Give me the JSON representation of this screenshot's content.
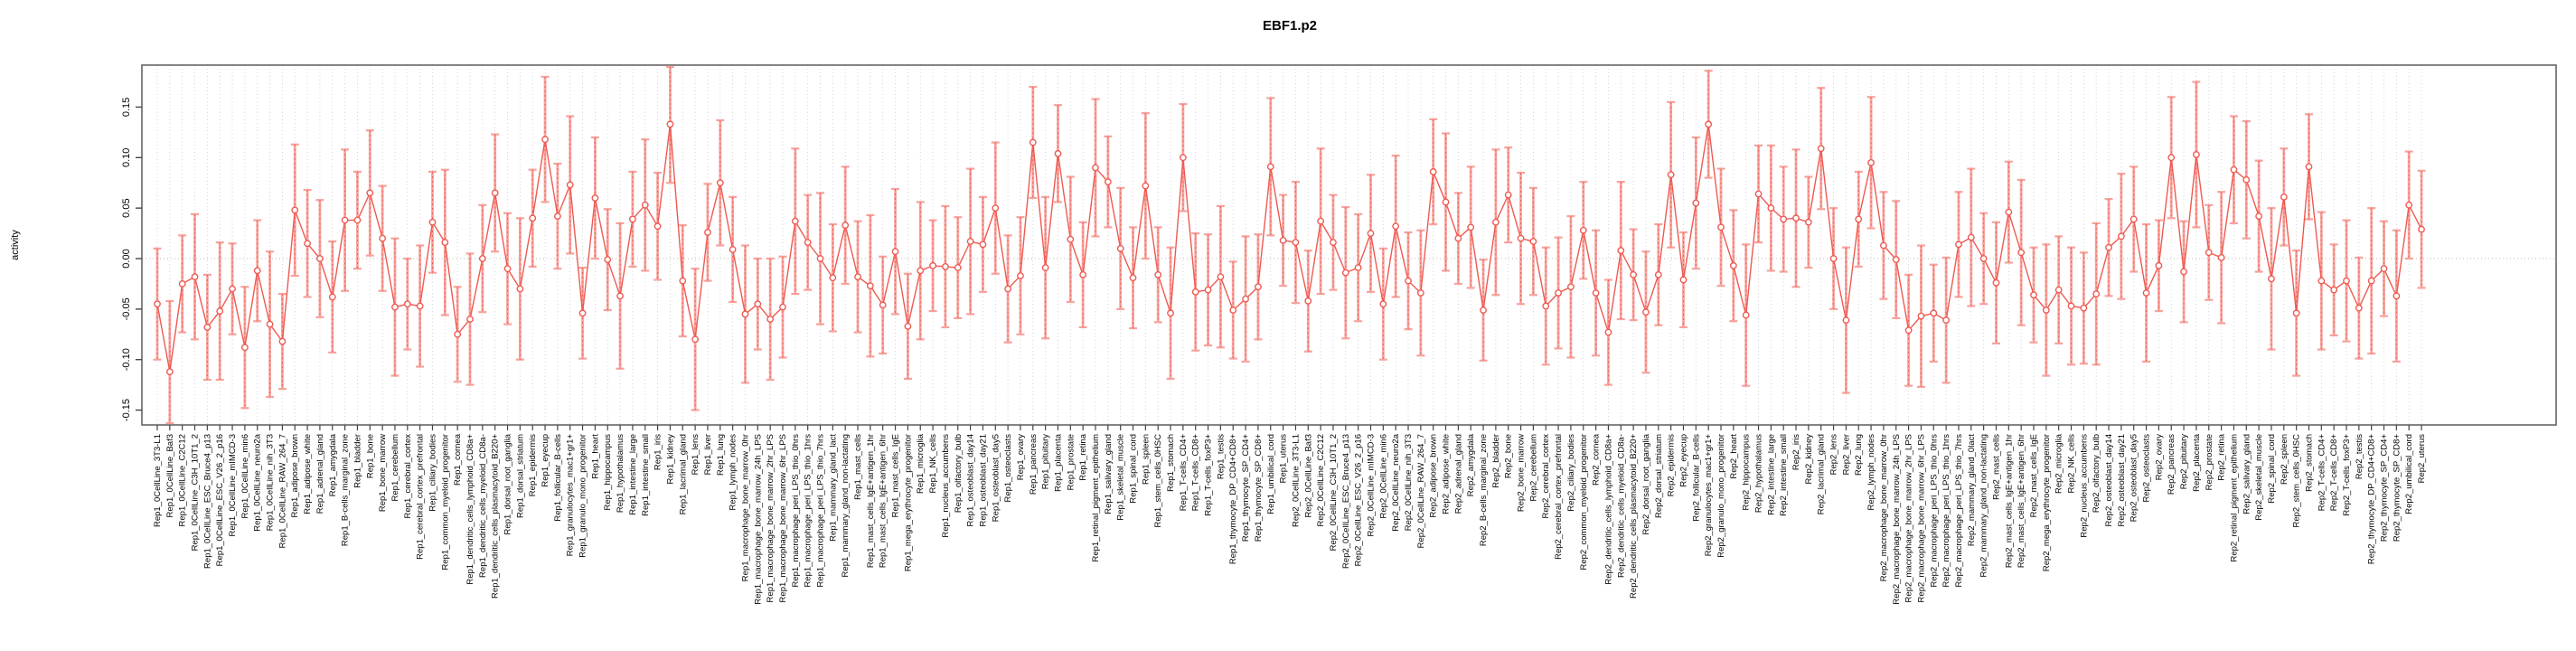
{
  "title": "EBF1.p2",
  "chart_data": {
    "type": "line",
    "subtype": "errorbar-points",
    "title": "EBF1.p2",
    "xlabel": "",
    "ylabel": "activity",
    "ylim": [
      -0.17,
      0.19
    ],
    "yticks": [
      0.15,
      0.1,
      0.05,
      0.0,
      -0.05,
      -0.1,
      -0.15
    ],
    "ytick_labels": [
      "0.15",
      "0.10",
      "0.05",
      "0.00",
      "-0.05",
      "-0.10",
      "-0.15"
    ],
    "grid": true,
    "legend_position": "none",
    "colors": {
      "series_line": "#ee5a52",
      "marker_stroke": "#ee5a52",
      "error_bar": "#f7a29c",
      "gridline": "#cccccc",
      "zero_line": "#bbbbbb",
      "box_border": "#666666",
      "tick": "#444444",
      "text": "#000000"
    },
    "categories": [
      "Rep1_0CellLine_3T3-L1",
      "Rep1_0CellLine_Baf3",
      "Rep1_0CellLine_C2C12",
      "Rep1_0CellLine_C3H_10T1_2",
      "Rep1_0CellLine_ESC_Bruce4_p13",
      "Rep1_0CellLine_ESC_V26_2_p16",
      "Rep1_0CellLine_mIMCD-3",
      "Rep1_0CellLine_min6",
      "Rep1_0CellLine_neuro2a",
      "Rep1_0CellLine_nih_3T3",
      "Rep1_0CellLine_RAW_264_7",
      "Rep1_adipose_brown",
      "Rep1_adipose_white",
      "Rep1_adrenal_gland",
      "Rep1_amygdala",
      "Rep1_B-cells_marginal_zone",
      "Rep1_bladder",
      "Rep1_bone",
      "Rep1_bone_marrow",
      "Rep1_cerebellum",
      "Rep1_cerebral_cortex",
      "Rep1_cerebral_cortex_prefrontal",
      "Rep1_ciliary_bodies",
      "Rep1_common_myeloid_progenitor",
      "Rep1_cornea",
      "Rep1_dendritic_cells_lymphoid_CD8a+",
      "Rep1_dendritic_cells_myeloid_CD8a-",
      "Rep1_dendritic_cells_plasmacytoid_B220+",
      "Rep1_dorsal_root_ganglia",
      "Rep1_dorsal_striatum",
      "Rep1_epidermis",
      "Rep1_eyecup",
      "Rep1_follicular_B-cells",
      "Rep1_granulocytes_mac1+gr1+",
      "Rep1_granulo_mono_progenitor",
      "Rep1_heart",
      "Rep1_hippocampus",
      "Rep1_hypothalamus",
      "Rep1_intestine_large",
      "Rep1_intestine_small",
      "Rep1_iris",
      "Rep1_kidney",
      "Rep1_lacrimal_gland",
      "Rep1_lens",
      "Rep1_liver",
      "Rep1_lung",
      "Rep1_lymph_nodes",
      "Rep1_macrophage_bone_marrow_0hr",
      "Rep1_macrophage_bone_marrow_24h_LPS",
      "Rep1_macrophage_bone_marrow_2hr_LPS",
      "Rep1_macrophage_bone_marrow_6hr_LPS",
      "Rep1_macrophage_peri_LPS_thio_0hrs",
      "Rep1_macrophage_peri_LPS_thio_1hrs",
      "Rep1_macrophage_peri_LPS_thio_7hrs",
      "Rep1_mammary_gland_lact",
      "Rep1_mammary_gland_non-lactating",
      "Rep1_mast_cells",
      "Rep1_mast_cells_IgE+antigen_1hr",
      "Rep1_mast_cells_IgE+antigen_6hr",
      "Rep1_mast_cells_IgE",
      "Rep1_mega_erythrocyte_progenitor",
      "Rep1_microglia",
      "Rep1_NK_cells",
      "Rep1_nucleus_accumbens",
      "Rep1_olfactory_bulb",
      "Rep1_osteoblast_day14",
      "Rep1_osteoblast_day21",
      "Rep1_osteoblast_day5",
      "Rep1_osteoclasts",
      "Rep1_ovary",
      "Rep1_pancreas",
      "Rep1_pituitary",
      "Rep1_placenta",
      "Rep1_prostate",
      "Rep1_retina",
      "Rep1_retinal_pigment_epithelium",
      "Rep1_salivary_gland",
      "Rep1_skeletal_muscle",
      "Rep1_spinal_cord",
      "Rep1_spleen",
      "Rep1_stem_cells_0HSC",
      "Rep1_stomach",
      "Rep1_T-cells_CD4+",
      "Rep1_T-cells_CD8+",
      "Rep1_T-cells_foxP3+",
      "Rep1_testis",
      "Rep1_thymocyte_DP_CD4+CD8+",
      "Rep1_thymocyte_SP_CD4+",
      "Rep1_thymocyte_SP_CD8+",
      "Rep1_umbilical_cord",
      "Rep1_uterus",
      "Rep2_0CellLine_3T3-L1",
      "Rep2_0CellLine_Baf3",
      "Rep2_0CellLine_C2C12",
      "Rep2_0CellLine_C3H_10T1_2",
      "Rep2_0CellLine_ESC_Bruce4_p13",
      "Rep2_0CellLine_ESC_V26_2_p16",
      "Rep2_0CellLine_mIMCD-3",
      "Rep2_0CellLine_min6",
      "Rep2_0CellLine_neuro2a",
      "Rep2_0CellLine_nih_3T3",
      "Rep2_0CellLine_RAW_264_7",
      "Rep2_adipose_brown",
      "Rep2_adipose_white",
      "Rep2_adrenal_gland",
      "Rep2_amygdala",
      "Rep2_B-cells_marginal_zone",
      "Rep2_bladder",
      "Rep2_bone",
      "Rep2_bone_marrow",
      "Rep2_cerebellum",
      "Rep2_cerebral_cortex",
      "Rep2_cerebral_cortex_prefrontal",
      "Rep2_ciliary_bodies",
      "Rep2_common_myeloid_progenitor",
      "Rep2_cornea",
      "Rep2_dendritic_cells_lymphoid_CD8a+",
      "Rep2_dendritic_cells_myeloid_CD8a-",
      "Rep2_dendritic_cells_plasmacytoid_B220+",
      "Rep2_dorsal_root_ganglia",
      "Rep2_dorsal_striatum",
      "Rep2_epidermis",
      "Rep2_eyecup",
      "Rep2_follicular_B-cells",
      "Rep2_granulocytes_mac1+gr1+",
      "Rep2_granulo_mono_progenitor",
      "Rep2_heart",
      "Rep2_hippocampus",
      "Rep2_hypothalamus",
      "Rep2_intestine_large",
      "Rep2_intestine_small",
      "Rep2_iris",
      "Rep2_kidney",
      "Rep2_lacrimal_gland",
      "Rep2_lens",
      "Rep2_liver",
      "Rep2_lung",
      "Rep2_lymph_nodes",
      "Rep2_macrophage_bone_marrow_0hr",
      "Rep2_macrophage_bone_marrow_24h_LPS",
      "Rep2_macrophage_bone_marrow_2hr_LPS",
      "Rep2_macrophage_bone_marrow_6hr_LPS",
      "Rep2_macrophage_peri_LPS_thio_0hrs",
      "Rep2_macrophage_peri_LPS_thio_1hrs",
      "Rep2_macrophage_peri_LPS_thio_7hrs",
      "Rep2_mammary_gland_0lact",
      "Rep2_mammary_gland_non-lactating",
      "Rep2_mast_cells",
      "Rep2_mast_cells_IgE+antigen_1hr",
      "Rep2_mast_cells_IgE+antigen_6hr",
      "Rep2_mast_cells_IgE",
      "Rep2_mega_erythrocyte_progenitor",
      "Rep2_microglia",
      "Rep2_NK_cells",
      "Rep2_nucleus_accumbens",
      "Rep2_olfactory_bulb",
      "Rep2_osteoblast_day14",
      "Rep2_osteoblast_day21",
      "Rep2_osteoblast_day5",
      "Rep2_osteoclasts",
      "Rep2_ovary",
      "Rep2_pancreas",
      "Rep2_pituitary",
      "Rep2_placenta",
      "Rep2_prostate",
      "Rep2_retina",
      "Rep2_retinal_pigment_epithelium",
      "Rep2_salivary_gland",
      "Rep2_skeletal_muscle",
      "Rep2_spinal_cord",
      "Rep2_spleen",
      "Rep2_stem_cells_0HSC",
      "Rep2_stomach",
      "Rep2_T-cells_CD4+",
      "Rep2_T-cells_CD8+",
      "Rep2_T-cells_foxP3+",
      "Rep2_testis",
      "Rep2_thymocyte_DP_CD4+CD8+",
      "Rep2_thymocyte_SP_CD4+",
      "Rep2_thymocyte_SP_CD8+",
      "Rep2_umbilical_cord",
      "Rep2_uterus"
    ],
    "values": [
      -0.045,
      -0.112,
      -0.025,
      -0.018,
      -0.068,
      -0.052,
      -0.03,
      -0.088,
      -0.012,
      -0.065,
      -0.082,
      0.048,
      0.015,
      0,
      -0.038,
      0.038,
      0.038,
      0.065,
      0.02,
      -0.048,
      -0.045,
      -0.047,
      0.036,
      0.016,
      -0.075,
      -0.06,
      0,
      0.065,
      -0.01,
      -0.03,
      0.04,
      0.118,
      0.042,
      0.073,
      -0.054,
      0.06,
      -0.001,
      -0.037,
      0.039,
      0.053,
      0.032,
      0.133,
      -0.022,
      -0.08,
      0.026,
      0.075,
      0.009,
      -0.055,
      -0.045,
      -0.06,
      -0.048,
      0.037,
      0.016,
      0,
      -0.019,
      0.033,
      -0.018,
      -0.027,
      -0.046,
      0.007,
      -0.067,
      -0.012,
      -0.007,
      -0.008,
      -0.009,
      0.017,
      0.014,
      0.05,
      -0.03,
      -0.017,
      0.115,
      -0.009,
      0.104,
      0.019,
      -0.016,
      0.09,
      0.076,
      0.01,
      -0.019,
      0.072,
      -0.016,
      -0.054,
      0.1,
      -0.033,
      -0.031,
      -0.018,
      -0.051,
      -0.04,
      -0.028,
      0.091,
      0.018,
      0.016,
      -0.042,
      0.037,
      0.016,
      -0.014,
      -0.009,
      0.025,
      -0.045,
      0.032,
      -0.022,
      -0.034,
      0.086,
      0.056,
      0.02,
      0.031,
      -0.051,
      0.036,
      0.063,
      0.02,
      0.017,
      -0.047,
      -0.034,
      -0.028,
      0.028,
      -0.034,
      -0.073,
      0.008,
      -0.016,
      -0.053,
      -0.016,
      0.083,
      -0.021,
      0.055,
      0.133,
      0.031,
      -0.007,
      -0.056,
      0.064,
      0.05,
      0.039,
      0.04,
      0.036,
      0.109,
      0,
      -0.061,
      0.039,
      0.095,
      0.013,
      -0.001,
      -0.071,
      -0.057,
      -0.054,
      -0.061,
      0.014,
      0.021,
      0,
      -0.024,
      0.046,
      0.006,
      -0.036,
      -0.051,
      -0.031,
      -0.047,
      -0.049,
      -0.035,
      0.011,
      0.022,
      0.039,
      -0.034,
      -0.007,
      0.1,
      -0.013,
      0.103,
      0.006,
      0.001,
      0.088,
      0.078,
      0.042,
      -0.02,
      0.061,
      -0.054,
      0.091,
      -0.022,
      -0.031,
      -0.022,
      -0.049,
      -0.022,
      -0.01,
      -0.037,
      0.053,
      0.029
    ],
    "errors": [
      0.055,
      0.07,
      0.048,
      0.062,
      0.052,
      0.068,
      0.045,
      0.06,
      0.05,
      0.072,
      0.047,
      0.065,
      0.053,
      0.058,
      0.055,
      0.07,
      0.048,
      0.062,
      0.052,
      0.068,
      0.045,
      0.06,
      0.05,
      0.072,
      0.047,
      0.065,
      0.053,
      0.058,
      0.055,
      0.07,
      0.048,
      0.062,
      0.052,
      0.068,
      0.045,
      0.06,
      0.05,
      0.072,
      0.047,
      0.065,
      0.053,
      0.058,
      0.055,
      0.07,
      0.048,
      0.062,
      0.052,
      0.068,
      0.045,
      0.06,
      0.05,
      0.072,
      0.047,
      0.065,
      0.053,
      0.058,
      0.055,
      0.07,
      0.048,
      0.062,
      0.052,
      0.068,
      0.045,
      0.06,
      0.05,
      0.072,
      0.047,
      0.065,
      0.053,
      0.058,
      0.055,
      0.07,
      0.048,
      0.062,
      0.052,
      0.068,
      0.045,
      0.06,
      0.05,
      0.072,
      0.047,
      0.065,
      0.053,
      0.058,
      0.055,
      0.07,
      0.048,
      0.062,
      0.052,
      0.068,
      0.045,
      0.06,
      0.05,
      0.072,
      0.047,
      0.065,
      0.053,
      0.058,
      0.055,
      0.07,
      0.048,
      0.062,
      0.052,
      0.068,
      0.045,
      0.06,
      0.05,
      0.072,
      0.047,
      0.065,
      0.053,
      0.058,
      0.055,
      0.07,
      0.048,
      0.062,
      0.052,
      0.068,
      0.045,
      0.06,
      0.05,
      0.072,
      0.047,
      0.065,
      0.053,
      0.058,
      0.055,
      0.07,
      0.048,
      0.062,
      0.052,
      0.068,
      0.045,
      0.06,
      0.05,
      0.072,
      0.047,
      0.065,
      0.053,
      0.058,
      0.055,
      0.07,
      0.048,
      0.062,
      0.052,
      0.068,
      0.045,
      0.06,
      0.05,
      0.072,
      0.047,
      0.065,
      0.053,
      0.058,
      0.055,
      0.07,
      0.048,
      0.062,
      0.052,
      0.068,
      0.045,
      0.06,
      0.05,
      0.072,
      0.047,
      0.065,
      0.053,
      0.058,
      0.055,
      0.07,
      0.048,
      0.062,
      0.052,
      0.068,
      0.045,
      0.06,
      0.05,
      0.072,
      0.047,
      0.065,
      0.053,
      0.058
    ]
  }
}
